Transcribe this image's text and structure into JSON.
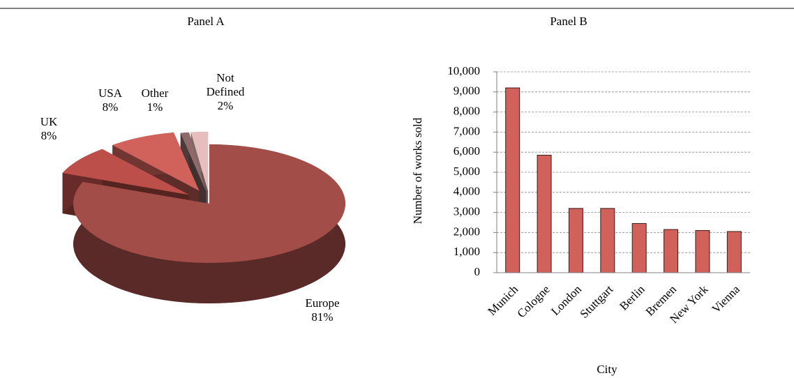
{
  "chart_data": [
    {
      "type": "pie",
      "title": "Panel A",
      "categories": [
        "Europe",
        "UK",
        "USA",
        "Other",
        "Not Defined"
      ],
      "values": [
        81,
        8,
        8,
        1,
        2
      ],
      "value_labels": [
        "81%",
        "8%",
        "8%",
        "1%",
        "2%"
      ],
      "colors": [
        "#a34d48",
        "#bd4f4a",
        "#d0625b",
        "#8e6a6a",
        "#e6bebe"
      ]
    },
    {
      "type": "bar",
      "title": "Panel B",
      "categories": [
        "Munich",
        "Cologne",
        "London",
        "Stuttgart",
        "Berlin",
        "Bremen",
        "New York",
        "Vienna"
      ],
      "values": [
        9200,
        5850,
        3200,
        3200,
        2450,
        2150,
        2100,
        2050
      ],
      "color": "#d0625b",
      "x_label": "City",
      "y_label": "Number of works sold",
      "ylim": [
        0,
        10000
      ],
      "yticks": [
        0,
        {
          "value": 1000,
          "label": "1,000"
        },
        {
          "value": 2000,
          "label": "2,000"
        },
        {
          "value": 3000,
          "label": "3,000"
        },
        {
          "value": 4000,
          "label": "4,000"
        },
        {
          "value": 5000,
          "label": "5,000"
        },
        {
          "value": 6000,
          "label": "6,000"
        },
        {
          "value": 7000,
          "label": "7,000"
        },
        {
          "value": 8000,
          "label": "8,000"
        },
        {
          "value": 9000,
          "label": "9,000"
        },
        {
          "value": 10000,
          "label": "10,000"
        }
      ],
      "grid": true
    }
  ]
}
